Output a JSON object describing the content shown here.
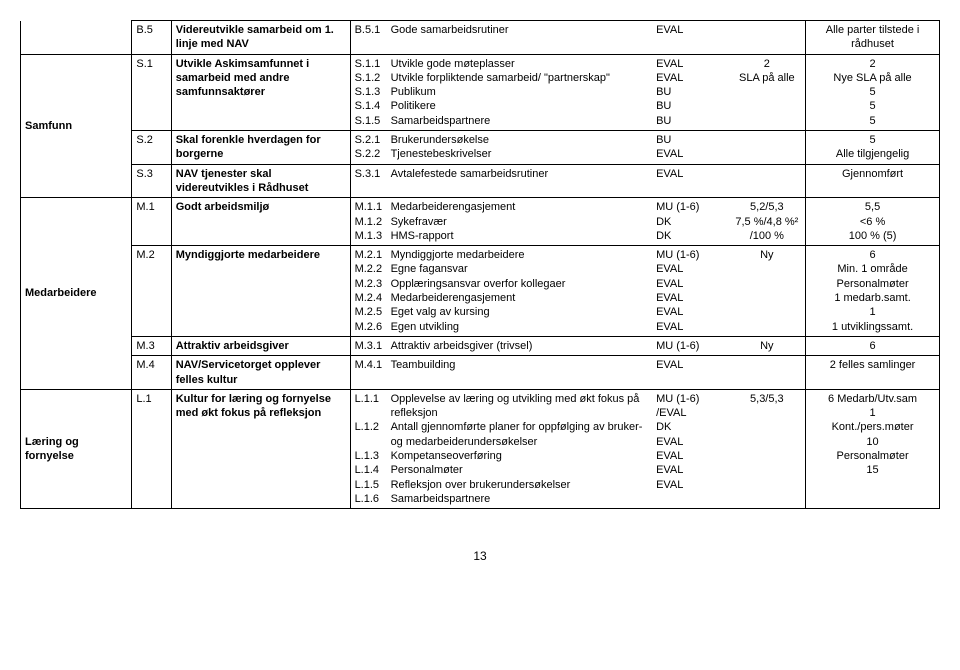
{
  "page_number": "13",
  "categories": [
    {
      "label": "Samfunn",
      "rowStart": 1,
      "rowEnd": 3
    },
    {
      "label": "Medarbeidere",
      "rowStart": 4,
      "rowEnd": 7
    },
    {
      "label": "Læring og fornyelse",
      "rowStart": 8,
      "rowEnd": 8
    }
  ],
  "rows": [
    {
      "id": "B.5",
      "desc": "Videreutvikle samarbeid om 1. linje med NAV",
      "subs": [
        {
          "sid": "B.5.1",
          "txt": "Gode samarbeidsrutiner",
          "met": "EVAL",
          "val": "",
          "res": "Alle parter tilstede i rådhuset"
        }
      ],
      "noCat": true
    },
    {
      "id": "S.1",
      "desc": "Utvikle Askimsamfunnet i samarbeid med andre samfunnsaktører",
      "subs": [
        {
          "sid": "S.1.1",
          "txt": "Utvikle gode møteplasser",
          "met": "EVAL",
          "val": "2",
          "res": "2"
        },
        {
          "sid": "S.1.2",
          "txt": "Utvikle forpliktende samarbeid/ \"partnerskap\"",
          "met": "EVAL",
          "val": "SLA på alle",
          "res": "Nye SLA på alle"
        },
        {
          "sid": "S.1.3",
          "txt": "Publikum",
          "met": "BU",
          "val": "",
          "res": "5"
        },
        {
          "sid": "S.1.4",
          "txt": "Politikere",
          "met": "BU",
          "val": "",
          "res": "5"
        },
        {
          "sid": "S.1.5",
          "txt": "Samarbeidspartnere",
          "met": "BU",
          "val": "",
          "res": "5"
        }
      ]
    },
    {
      "id": "S.2",
      "desc": "Skal forenkle hverdagen for borgerne",
      "subs": [
        {
          "sid": "S.2.1",
          "txt": "Brukerundersøkelse",
          "met": "BU",
          "val": "",
          "res": "5"
        },
        {
          "sid": "S.2.2",
          "txt": "Tjenestebeskrivelser",
          "met": "EVAL",
          "val": "",
          "res": "Alle tilgjengelig"
        }
      ]
    },
    {
      "id": "S.3",
      "desc": "NAV tjenester skal videreutvikles i Rådhuset",
      "subs": [
        {
          "sid": "S.3.1",
          "txt": "Avtalefestede samarbeidsrutiner",
          "met": "EVAL",
          "val": "",
          "res": "Gjennomført"
        }
      ]
    },
    {
      "id": "M.1",
      "desc": "Godt arbeidsmiljø",
      "subs": [
        {
          "sid": "M.1.1",
          "txt": "Medarbeiderengasjement",
          "met": "MU (1-6)",
          "val": "5,2/5,3",
          "res": "5,5"
        },
        {
          "sid": "M.1.2",
          "txt": "Sykefravær",
          "met": "DK",
          "val": "7,5 %/4,8 %²",
          "res": "<6 %"
        },
        {
          "sid": "M.1.3",
          "txt": "HMS-rapport",
          "met": "DK",
          "val": "/100 %",
          "res": "100 % (5)"
        }
      ]
    },
    {
      "id": "M.2",
      "desc": "Myndiggjorte medarbeidere",
      "subs": [
        {
          "sid": "M.2.1",
          "txt": "Myndiggjorte medarbeidere",
          "met": "MU (1-6)",
          "val": "Ny",
          "res": "6"
        },
        {
          "sid": "M.2.2",
          "txt": "Egne fagansvar",
          "met": "EVAL",
          "val": "",
          "res": "Min. 1 område"
        },
        {
          "sid": "M.2.3",
          "txt": "Opplæringsansvar overfor kollegaer",
          "met": "EVAL",
          "val": "",
          "res": "Personalmøter"
        },
        {
          "sid": "M.2.4",
          "txt": "Medarbeiderengasjement",
          "met": "EVAL",
          "val": "",
          "res": "1 medarb.samt."
        },
        {
          "sid": "M.2.5",
          "txt": "Eget valg av kursing",
          "met": "EVAL",
          "val": "",
          "res": "1"
        },
        {
          "sid": "M.2.6",
          "txt": "Egen utvikling",
          "met": "EVAL",
          "val": "",
          "res": "1 utviklingssamt."
        }
      ]
    },
    {
      "id": "M.3",
      "desc": "Attraktiv arbeidsgiver",
      "subs": [
        {
          "sid": "M.3.1",
          "txt": "Attraktiv arbeidsgiver (trivsel)",
          "met": "MU (1-6)",
          "val": "Ny",
          "res": "6"
        }
      ]
    },
    {
      "id": "M.4",
      "desc": "NAV/Servicetorget opplever felles kultur",
      "subs": [
        {
          "sid": "M.4.1",
          "txt": "Teambuilding",
          "met": "EVAL",
          "val": "",
          "res": "2 felles samlinger"
        }
      ]
    },
    {
      "id": "L.1",
      "desc": "Kultur for læring og fornyelse med økt fokus på refleksjon",
      "subs": [
        {
          "sid": "L.1.1",
          "txt": "Opplevelse av læring og utvikling med økt fokus på refleksjon",
          "met": "MU (1-6) /EVAL",
          "val": "5,3/5,3",
          "res": "6 Medarb/Utv.sam"
        },
        {
          "sid": "L.1.2",
          "txt": "Antall gjennomførte planer for oppfølging av bruker- og medarbeiderundersøkelser",
          "met": "DK",
          "val": "",
          "res": "1"
        },
        {
          "sid": "L.1.3",
          "txt": "Kompetanseoverføring",
          "met": "EVAL",
          "val": "",
          "res": "Kont./pers.møter"
        },
        {
          "sid": "L.1.4",
          "txt": "Personalmøter",
          "met": "EVAL",
          "val": "",
          "res": "10"
        },
        {
          "sid": "L.1.5",
          "txt": "Refleksjon over brukerundersøkelser",
          "met": "EVAL",
          "val": "",
          "res": "Personalmøter"
        },
        {
          "sid": "L.1.6",
          "txt": "Samarbeidspartnere",
          "met": "EVAL",
          "val": "",
          "res": "15"
        }
      ]
    }
  ]
}
